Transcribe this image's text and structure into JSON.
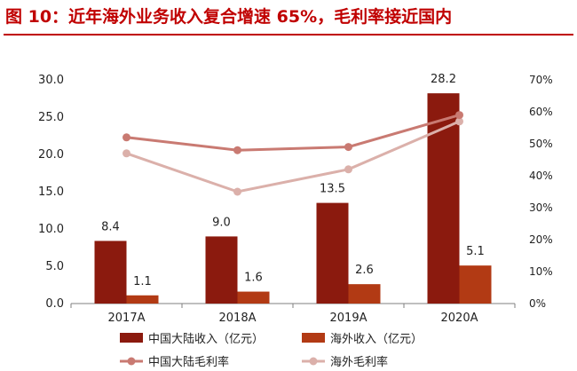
{
  "chart_data": {
    "type": "bar+line",
    "title": "图 10：近年海外业务收入复合增速 65%，毛利率接近国内",
    "categories": [
      "2017A",
      "2018A",
      "2019A",
      "2020A"
    ],
    "series": [
      {
        "name": "中国大陆收入（亿元）",
        "type": "bar",
        "axis": "left",
        "color": "#8b1a0e",
        "values": [
          8.4,
          9.0,
          13.5,
          28.2
        ]
      },
      {
        "name": "海外收入（亿元）",
        "type": "bar",
        "axis": "left",
        "color": "#b23a14",
        "values": [
          1.1,
          1.6,
          2.6,
          5.1
        ]
      },
      {
        "name": "中国大陆毛利率",
        "type": "line",
        "axis": "right",
        "color": "#c97a72",
        "values": [
          52,
          48,
          49,
          59
        ]
      },
      {
        "name": "海外毛利率",
        "type": "line",
        "axis": "right",
        "color": "#dbb0aa",
        "values": [
          47,
          35,
          42,
          57
        ]
      }
    ],
    "left_axis": {
      "min": 0,
      "max": 30,
      "step": 5,
      "ticks": [
        "0.0",
        "5.0",
        "10.0",
        "15.0",
        "20.0",
        "25.0",
        "30.0"
      ]
    },
    "right_axis": {
      "min": 0,
      "max": 70,
      "step": 10,
      "ticks": [
        "0%",
        "10%",
        "20%",
        "30%",
        "40%",
        "50%",
        "60%",
        "70%"
      ]
    },
    "grid": false,
    "legend_position": "bottom"
  }
}
